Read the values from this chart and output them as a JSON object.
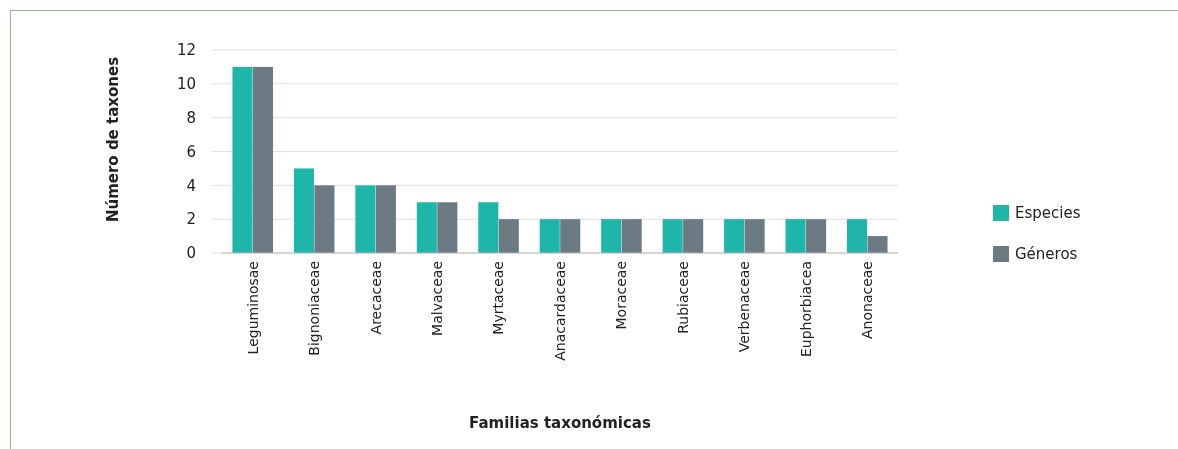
{
  "chart_data": {
    "type": "bar",
    "xlabel": "Familias taxonómicas",
    "ylabel": "Número de taxones",
    "categories": [
      "Leguminosae",
      "Bignoniaceae",
      "Arecaceae",
      "Malvaceae",
      "Myrtaceae",
      "Anacardaceae",
      "Moraceae",
      "Rubiaceae",
      "Verbenaceae",
      "Euphorbiacea",
      "Anonaceae"
    ],
    "series": [
      {
        "name": "Especies",
        "color": "#20b5a9",
        "values": [
          11,
          5,
          4,
          3,
          3,
          2,
          2,
          2,
          2,
          2,
          2
        ]
      },
      {
        "name": "Géneros",
        "color": "#6b7a83",
        "values": [
          11,
          4,
          4,
          3,
          2,
          2,
          2,
          2,
          2,
          2,
          1
        ]
      }
    ],
    "ylim": [
      0,
      12
    ],
    "yticks": [
      0,
      2,
      4,
      6,
      8,
      10,
      12
    ],
    "grid": "y",
    "legend": "right"
  }
}
